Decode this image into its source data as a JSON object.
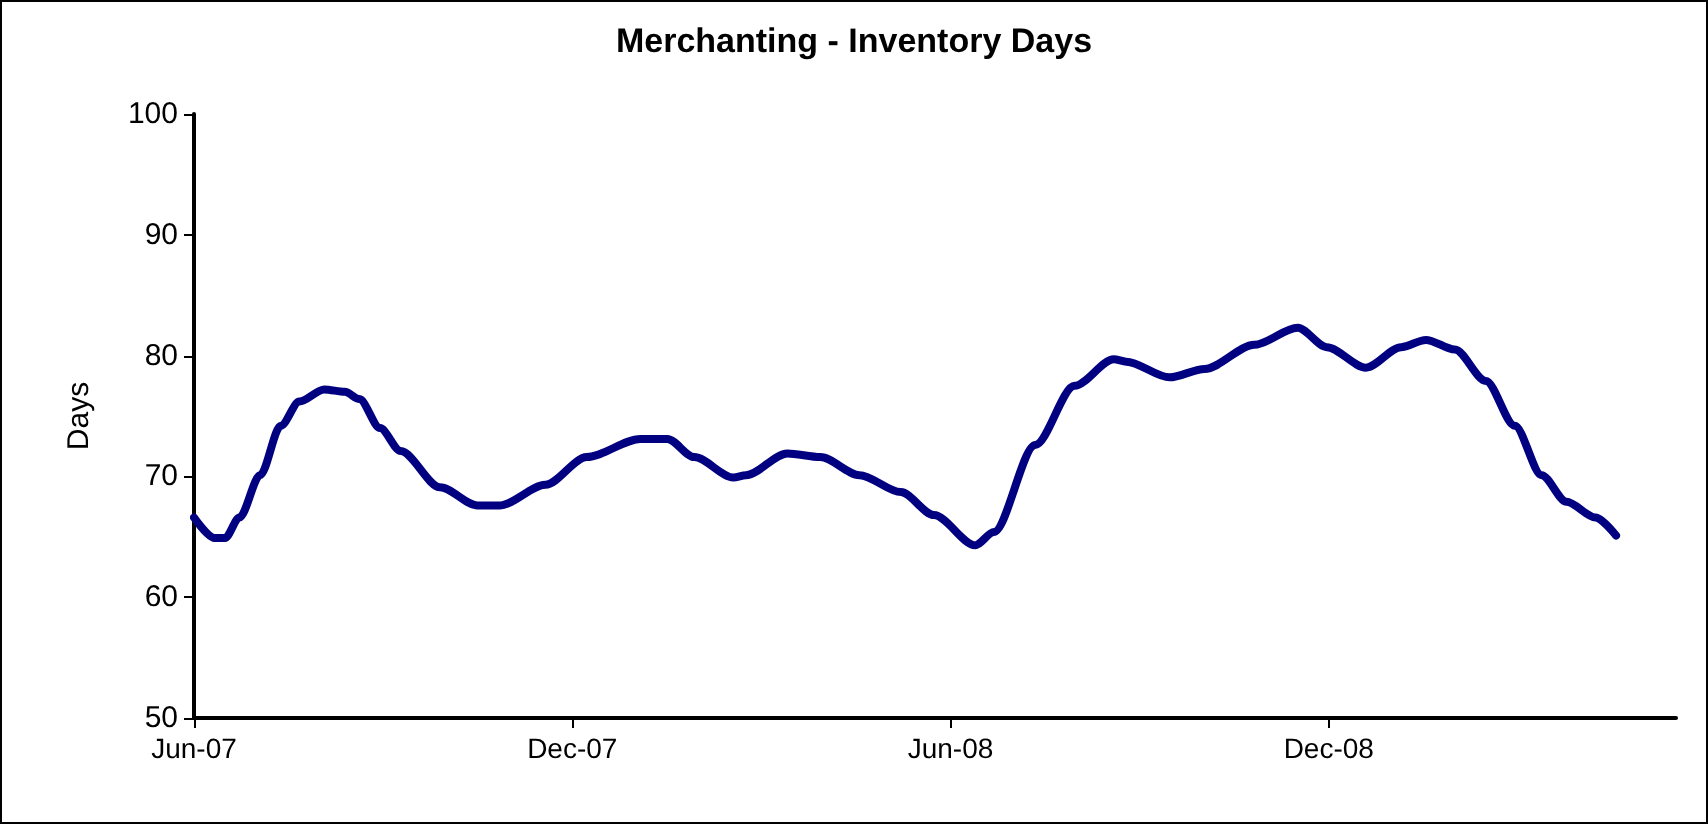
{
  "chart_data": {
    "type": "line",
    "title": "Merchanting - Inventory Days",
    "ylabel": "Days",
    "x": [
      "2007-06-01",
      "2007-06-11",
      "2007-06-16",
      "2007-06-23",
      "2007-07-03",
      "2007-07-13",
      "2007-07-22",
      "2007-08-03",
      "2007-08-13",
      "2007-08-20",
      "2007-08-30",
      "2007-09-09",
      "2007-09-28",
      "2007-10-16",
      "2007-10-27",
      "2007-11-18",
      "2007-12-08",
      "2008-01-03",
      "2008-01-16",
      "2008-01-29",
      "2008-02-17",
      "2008-02-23",
      "2008-03-14",
      "2008-03-30",
      "2008-04-18",
      "2008-05-08",
      "2008-05-24",
      "2008-06-13",
      "2008-06-22",
      "2008-07-12",
      "2008-07-31",
      "2008-08-19",
      "2008-08-25",
      "2008-09-15",
      "2008-10-02",
      "2008-10-26",
      "2008-11-16",
      "2008-11-30",
      "2008-12-19",
      "2009-01-05",
      "2009-01-17",
      "2009-01-31",
      "2009-02-15",
      "2009-03-01",
      "2009-03-14",
      "2009-03-26",
      "2009-04-09",
      "2009-04-19"
    ],
    "series": [
      {
        "color": "#000080",
        "values": [
          66.6,
          64.9,
          64.9,
          66.6,
          70.1,
          74.2,
          76.2,
          77.2,
          77.0,
          76.4,
          74.0,
          72.1,
          69.1,
          67.6,
          67.6,
          69.3,
          71.6,
          73.1,
          73.1,
          71.6,
          69.9,
          70.1,
          71.9,
          71.6,
          70.1,
          68.7,
          66.8,
          64.3,
          65.4,
          72.6,
          77.5,
          79.7,
          79.5,
          78.2,
          78.9,
          80.9,
          82.3,
          80.7,
          79.0,
          80.7,
          81.3,
          80.5,
          77.9,
          74.2,
          70.1,
          67.9,
          66.6,
          65.1
        ]
      }
    ],
    "xlim": [
      "2007-06-01",
      "2009-05-18"
    ],
    "xticks": [
      {
        "value": "2007-06-01",
        "label": "Jun-07"
      },
      {
        "value": "2007-12-01",
        "label": "Dec-07"
      },
      {
        "value": "2008-06-01",
        "label": "Jun-08"
      },
      {
        "value": "2008-12-01",
        "label": "Dec-08"
      }
    ],
    "ylim": [
      50,
      100
    ],
    "yticks": [
      50,
      60,
      70,
      80,
      90,
      100
    ],
    "marker": "none",
    "line_style": "solid"
  }
}
